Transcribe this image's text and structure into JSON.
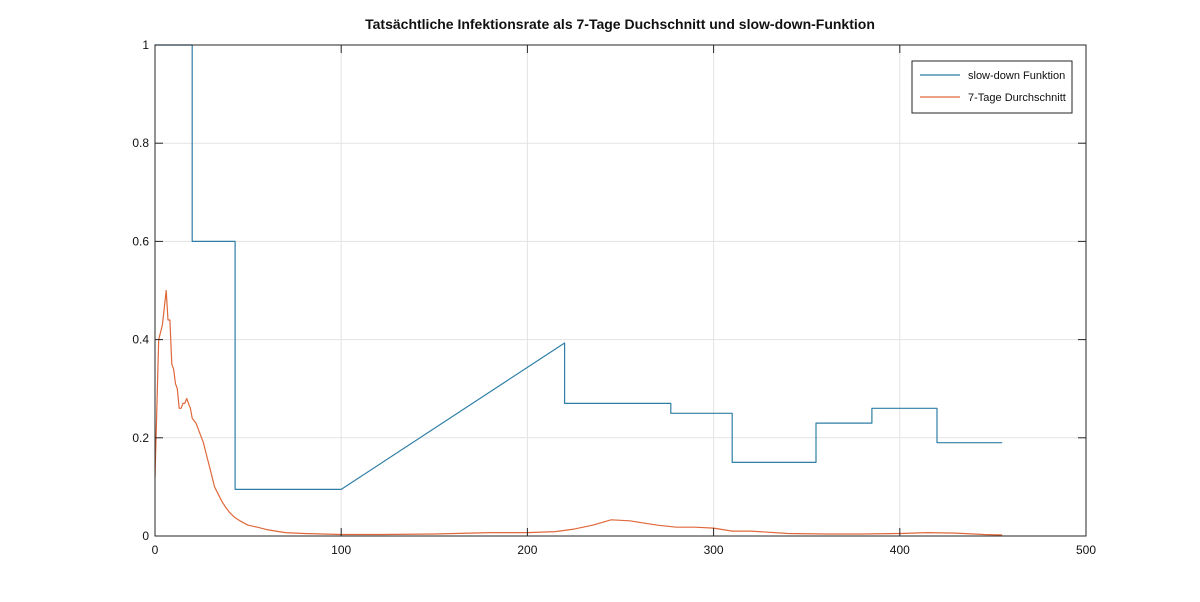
{
  "chart_data": {
    "type": "line",
    "title": "Tatsächtliche Infektionsrate als 7-Tage Duchschnitt  und slow-down-Funktion",
    "xlabel": "",
    "ylabel": "",
    "xlim": [
      0,
      500
    ],
    "ylim": [
      0,
      1
    ],
    "x_ticks": [
      "0",
      "100",
      "200",
      "300",
      "400",
      "500"
    ],
    "y_ticks": [
      "0",
      "0.2",
      "0.4",
      "0.6",
      "0.8",
      "1"
    ],
    "grid": true,
    "legend_position": "top-right",
    "series": [
      {
        "name": "slow-down Funktion",
        "color": "#2e7ea6",
        "x": [
          0,
          20,
          20,
          43,
          43,
          100,
          220,
          220,
          277,
          277,
          310,
          310,
          355,
          355,
          385,
          385,
          420,
          420,
          455
        ],
        "y": [
          1.0,
          1.0,
          0.6,
          0.6,
          0.095,
          0.095,
          0.393,
          0.27,
          0.27,
          0.25,
          0.25,
          0.15,
          0.15,
          0.23,
          0.23,
          0.26,
          0.26,
          0.19,
          0.19
        ]
      },
      {
        "name": "7-Tage Durchschnitt",
        "color": "#e0683a",
        "x": [
          0,
          2,
          4,
          6,
          7,
          8,
          9,
          10,
          11,
          12,
          13,
          14,
          15,
          16,
          17,
          18,
          19,
          20,
          22,
          24,
          26,
          28,
          30,
          32,
          34,
          36,
          38,
          40,
          43,
          46,
          50,
          55,
          60,
          70,
          80,
          100,
          120,
          150,
          180,
          200,
          215,
          225,
          235,
          245,
          250,
          255,
          260,
          270,
          280,
          290,
          300,
          310,
          320,
          340,
          360,
          380,
          400,
          415,
          430,
          445,
          455
        ],
        "y": [
          0.12,
          0.4,
          0.43,
          0.5,
          0.44,
          0.44,
          0.35,
          0.34,
          0.31,
          0.3,
          0.26,
          0.26,
          0.27,
          0.27,
          0.28,
          0.27,
          0.26,
          0.24,
          0.23,
          0.21,
          0.19,
          0.16,
          0.13,
          0.1,
          0.085,
          0.07,
          0.058,
          0.048,
          0.037,
          0.03,
          0.022,
          0.018,
          0.013,
          0.007,
          0.005,
          0.003,
          0.003,
          0.004,
          0.007,
          0.007,
          0.009,
          0.014,
          0.022,
          0.033,
          0.032,
          0.031,
          0.028,
          0.022,
          0.018,
          0.018,
          0.016,
          0.01,
          0.01,
          0.005,
          0.004,
          0.004,
          0.005,
          0.007,
          0.006,
          0.003,
          0.002
        ]
      }
    ]
  }
}
